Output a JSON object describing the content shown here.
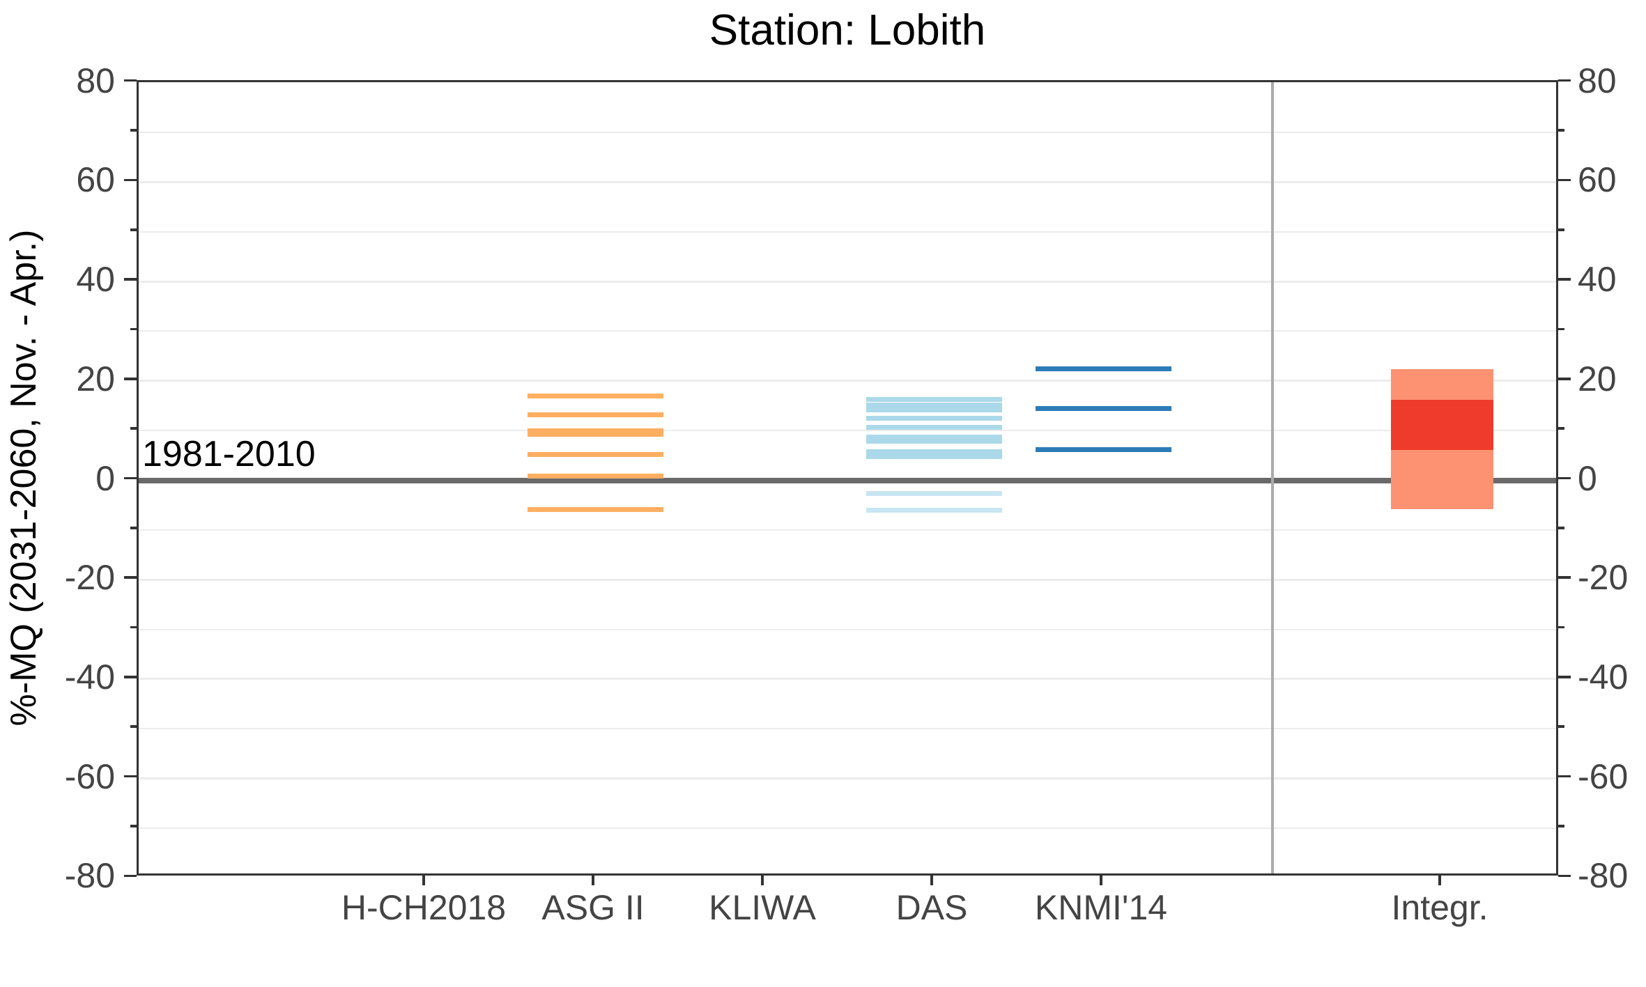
{
  "title": "Station: Lobith",
  "chart_data": {
    "type": "line",
    "subtype": "categorical ensemble ranges (horizontal dash marks per model, summary box for integrated range)",
    "title": "Station: Lobith",
    "ylabel": "%-MQ (2031-2060, Nov. - Apr.)",
    "xlabel": "",
    "ylim": [
      -80,
      80
    ],
    "ytick_step": 20,
    "ytick_labels": [
      "80",
      "60",
      "40",
      "20",
      "0",
      "-20",
      "-40",
      "-60",
      "-80"
    ],
    "minor_grid_step": 10,
    "grid": "on",
    "axis_on_both_sides": true,
    "reference_line": {
      "y": 0,
      "label": "1981-2010"
    },
    "categories": [
      "H-CH2018",
      "ASG II",
      "KLIWA",
      "DAS",
      "KNMI'14",
      "Integr."
    ],
    "separator_between": [
      "KNMI'14",
      "Integr."
    ],
    "series": [
      {
        "name": "H-CH2018",
        "mark": "lines",
        "color": "#FDAE61",
        "values": []
      },
      {
        "name": "ASG II",
        "mark": "lines",
        "color": "#FDAE61",
        "values": [
          17.0,
          13.2,
          10.0,
          9.2,
          5.2,
          0.8,
          -5.9
        ]
      },
      {
        "name": "KLIWA",
        "mark": "lines",
        "color": "#ABD9E9",
        "values": []
      },
      {
        "name": "DAS",
        "mark": "lines",
        "color": "#ABD9E9",
        "values": [
          16.2,
          15.1,
          14.1,
          12.5,
          10.7,
          8.7,
          7.8,
          5.7,
          4.7,
          -2.6,
          -6.0
        ]
      },
      {
        "name": "KNMI'14",
        "mark": "lines",
        "color": "#2C7BB6",
        "values": [
          22.4,
          14.5,
          6.1
        ]
      },
      {
        "name": "Integr.",
        "mark": "box",
        "outer_range": [
          -5.8,
          22.4
        ],
        "inner_range": [
          6.1,
          16.2
        ],
        "outer_color": "#FC9272",
        "inner_color": "#EF3B2C"
      }
    ],
    "colors": {
      "orange": "#FDAE61",
      "light_blue": "#ABD9E9",
      "dark_blue": "#2C7BB6",
      "box_outer": "#FC9272",
      "box_inner": "#EF3B2C",
      "zero_line": "#696969",
      "separator": "#ABABAB",
      "grid": "#ECECEC",
      "axis": "#333333",
      "tick_text": "#444444"
    }
  }
}
